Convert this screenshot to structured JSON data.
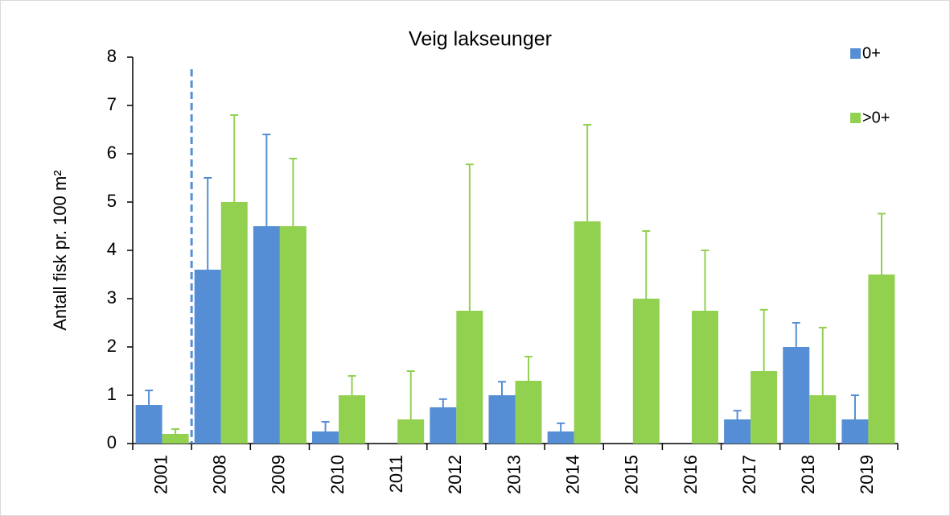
{
  "chart_data": {
    "type": "bar",
    "title": "Veig lakseunger",
    "y_label": "Antall fisk pr. 100 m²",
    "categories": [
      "2001",
      "2008",
      "2009",
      "2010",
      "2011",
      "2012",
      "2013",
      "2014",
      "2015",
      "2016",
      "2017",
      "2018",
      "2019"
    ],
    "series": [
      {
        "name": "0+",
        "color": "#558ed5",
        "values": [
          0.8,
          3.6,
          4.5,
          0.25,
          0,
          0.75,
          1.0,
          0.25,
          0,
          0,
          0.5,
          2.0,
          0.5
        ],
        "errors": [
          0.3,
          1.9,
          1.9,
          0.2,
          null,
          0.17,
          0.28,
          0.17,
          null,
          null,
          0.18,
          0.5,
          0.5
        ]
      },
      {
        "name": ">0+",
        "color": "#92d050",
        "values": [
          0.2,
          5.0,
          4.5,
          1.0,
          0.5,
          2.75,
          1.3,
          4.6,
          3.0,
          2.75,
          1.5,
          1.0,
          3.5
        ],
        "errors": [
          0.1,
          1.8,
          1.4,
          0.4,
          1.0,
          3.03,
          0.5,
          2.0,
          1.4,
          1.25,
          1.27,
          1.4,
          1.26
        ]
      }
    ],
    "ylim": [
      0,
      8
    ],
    "yticks": [
      0,
      1,
      2,
      3,
      4,
      5,
      6,
      7,
      8
    ],
    "grid": false,
    "legend": "top-right"
  }
}
